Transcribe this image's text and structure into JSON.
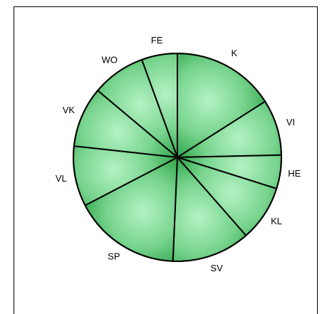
{
  "chart_data": {
    "type": "pie",
    "title": "",
    "categories": [
      "K",
      "VI",
      "HE",
      "KL",
      "SV",
      "SP",
      "VL",
      "VK",
      "WO",
      "FE"
    ],
    "values": [
      15.97,
      8.68,
      5.21,
      8.68,
      12.15,
      16.67,
      9.38,
      9.38,
      8.33,
      5.55
    ],
    "start_angle_deg": 0,
    "direction": "clockwise",
    "colors": {
      "fill_center": "#b4f2c4",
      "fill_edge": "#2da447",
      "stroke": "#000000",
      "frame": "#000000"
    },
    "legend": "none"
  }
}
